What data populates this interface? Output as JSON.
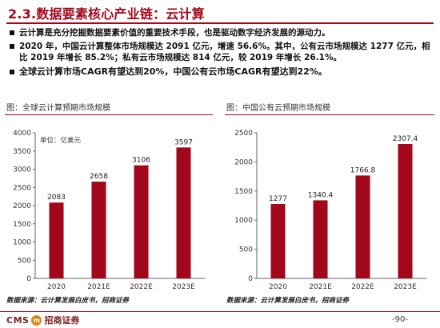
{
  "header": {
    "title": "2.3.数据要素核心产业链：云计算"
  },
  "bullets": [
    "云计算是充分挖掘数据要素价值的重要技术手段，也是驱动数字经济发展的源动力。",
    "2020 年，中国云计算整体市场规模达 2091 亿元，增速 56.6%。其中，公有云市场规模达 1277 亿元，相比 2019 年增长 85.2%；私有云市场规模达 814 亿元，较 2019 年增长 26.1%。",
    "全球云计算市场CAGR有望达到20%，中国公有云市场CAGR有望达到22%。"
  ],
  "chart_data": [
    {
      "type": "bar",
      "title": "图：全球云计算预期市场规模",
      "unit_label": "单位：亿美元",
      "categories": [
        "2020",
        "2021E",
        "2022E",
        "2023E"
      ],
      "values": [
        2083,
        2658,
        3106,
        3597
      ],
      "value_labels": [
        "2083",
        "2658",
        "3106",
        "3597"
      ],
      "yticks": [
        "0",
        "500",
        "1000",
        "1500",
        "2000",
        "2500",
        "3000",
        "3500",
        "4000"
      ],
      "ylim": [
        0,
        4000
      ],
      "ystep": 500,
      "bar_color": "#a3071c",
      "grid": false,
      "source": "数据来源：云计算发展白皮书，招商证券"
    },
    {
      "type": "bar",
      "title": "图：中国公有云预期市场规模",
      "categories": [
        "2020",
        "2021E",
        "2022E",
        "2023E"
      ],
      "values": [
        1277,
        1340.4,
        1766.8,
        2307.4
      ],
      "value_labels": [
        "1277",
        "1340.4",
        "1766.8",
        "2307.4"
      ],
      "yticks": [
        "0",
        "500",
        "1000",
        "1500",
        "2000",
        "2500"
      ],
      "ylim": [
        0,
        2500
      ],
      "ystep": 500,
      "bar_color": "#a3071c",
      "grid": false,
      "source": "数据来源：云计算发展白皮书，招商证券"
    }
  ],
  "footer": {
    "logo_text": "CMS",
    "logo_mark": "m",
    "company": "招商证券",
    "page_number": "-90-"
  }
}
